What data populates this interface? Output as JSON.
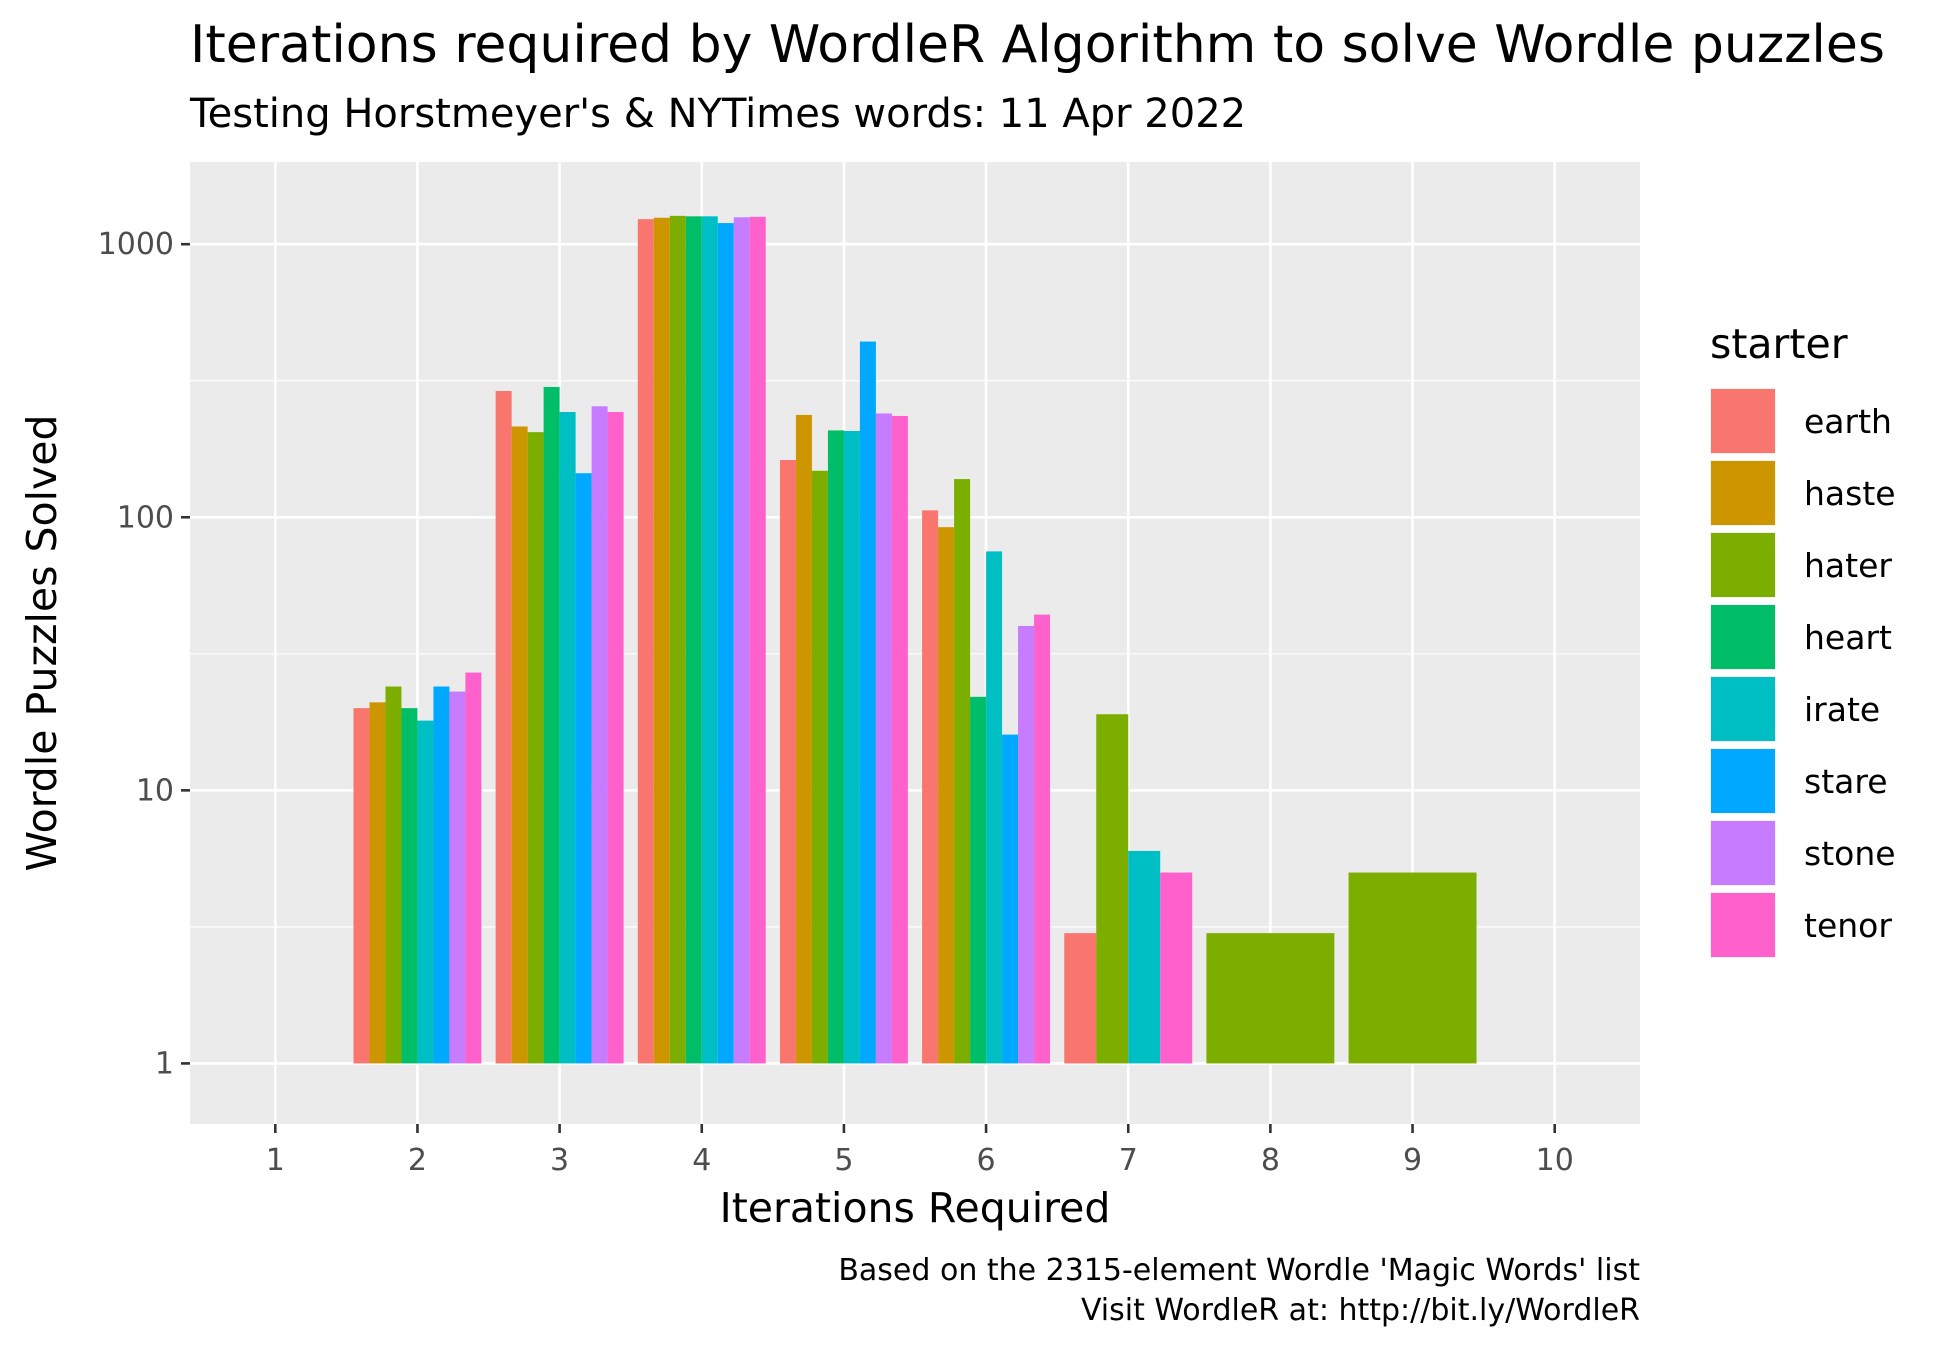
{
  "chart_data": {
    "type": "bar",
    "title": "Iterations required by WordleR Algorithm to solve Wordle puzzles",
    "subtitle": "Testing Horstmeyer's & NYTimes words: 11 Apr 2022",
    "xlabel": "Iterations Required",
    "ylabel": "Wordle Puzzles Solved",
    "caption_lines": [
      "Based on the 2315-element Wordle 'Magic Words' list",
      "Visit WordleR at: http://bit.ly/WordleR"
    ],
    "x_ticks": [
      "1",
      "2",
      "3",
      "4",
      "5",
      "6",
      "7",
      "8",
      "9",
      "10"
    ],
    "xlim": [
      0.4,
      10.6
    ],
    "y_scale": "log10",
    "y_ticks": [
      1,
      10,
      100,
      1000
    ],
    "y_tick_labels": [
      "1",
      "10",
      "100",
      "1000"
    ],
    "ylim": [
      0.6,
      2000
    ],
    "grid": true,
    "legend": {
      "title": "starter",
      "position": "right"
    },
    "series": [
      {
        "name": "earth",
        "color": "#F8766D",
        "points": [
          [
            2,
            20
          ],
          [
            3,
            290
          ],
          [
            4,
            1235
          ],
          [
            5,
            162
          ],
          [
            6,
            106
          ],
          [
            7,
            3
          ]
        ]
      },
      {
        "name": "haste",
        "color": "#CD9600",
        "points": [
          [
            2,
            21
          ],
          [
            3,
            215
          ],
          [
            4,
            1250
          ],
          [
            5,
            237
          ],
          [
            6,
            92
          ]
        ]
      },
      {
        "name": "hater",
        "color": "#7CAE00",
        "points": [
          [
            2,
            24
          ],
          [
            3,
            205
          ],
          [
            4,
            1270
          ],
          [
            5,
            148
          ],
          [
            6,
            138
          ],
          [
            7,
            19
          ],
          [
            8,
            3
          ],
          [
            9,
            5
          ]
        ]
      },
      {
        "name": "heart",
        "color": "#00BE67",
        "points": [
          [
            2,
            20
          ],
          [
            3,
            300
          ],
          [
            4,
            1265
          ],
          [
            5,
            208
          ],
          [
            6,
            22
          ]
        ]
      },
      {
        "name": "irate",
        "color": "#00BFC4",
        "points": [
          [
            2,
            18
          ],
          [
            3,
            243
          ],
          [
            4,
            1265
          ],
          [
            5,
            207
          ],
          [
            6,
            75
          ],
          [
            7,
            6
          ]
        ]
      },
      {
        "name": "stare",
        "color": "#00A9FF",
        "points": [
          [
            2,
            24
          ],
          [
            3,
            145
          ],
          [
            4,
            1195
          ],
          [
            5,
            440
          ],
          [
            6,
            16
          ]
        ]
      },
      {
        "name": "stone",
        "color": "#C77CFF",
        "points": [
          [
            2,
            23
          ],
          [
            3,
            255
          ],
          [
            4,
            1255
          ],
          [
            5,
            240
          ],
          [
            6,
            40
          ]
        ]
      },
      {
        "name": "tenor",
        "color": "#FF61CC",
        "points": [
          [
            2,
            27
          ],
          [
            3,
            243
          ],
          [
            4,
            1260
          ],
          [
            5,
            235
          ],
          [
            6,
            44
          ],
          [
            7,
            5
          ]
        ]
      }
    ]
  }
}
